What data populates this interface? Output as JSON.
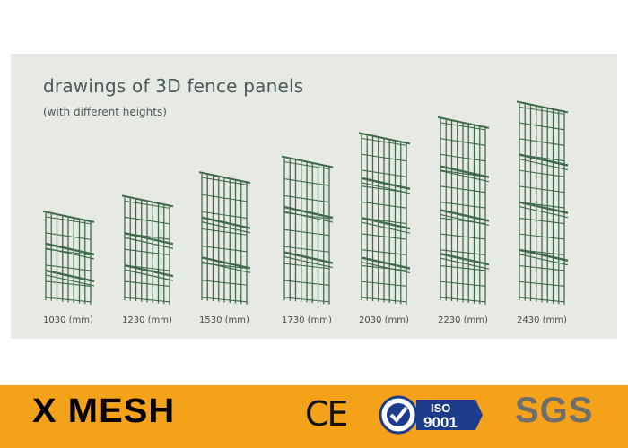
{
  "header": {
    "title": "drawings of 3D fence panels",
    "subtitle": "(with different heights)"
  },
  "panels": [
    {
      "height_mm": 1030,
      "label": "1030 (mm)"
    },
    {
      "height_mm": 1230,
      "label": "1230 (mm)"
    },
    {
      "height_mm": 1530,
      "label": "1530 (mm)"
    },
    {
      "height_mm": 1730,
      "label": "1730 (mm)"
    },
    {
      "height_mm": 2030,
      "label": "2030 (mm)"
    },
    {
      "height_mm": 2230,
      "label": "2230 (mm)"
    },
    {
      "height_mm": 2430,
      "label": "2430 (mm)"
    }
  ],
  "footer": {
    "brand": "X MESH",
    "ce": "CE",
    "iso_top": "ISO",
    "iso_number": "9001",
    "sgs": "SGS"
  },
  "colors": {
    "background_orange": "#f5a21b",
    "card": "#e7eae4",
    "fence_green": "#3f6b4c"
  }
}
